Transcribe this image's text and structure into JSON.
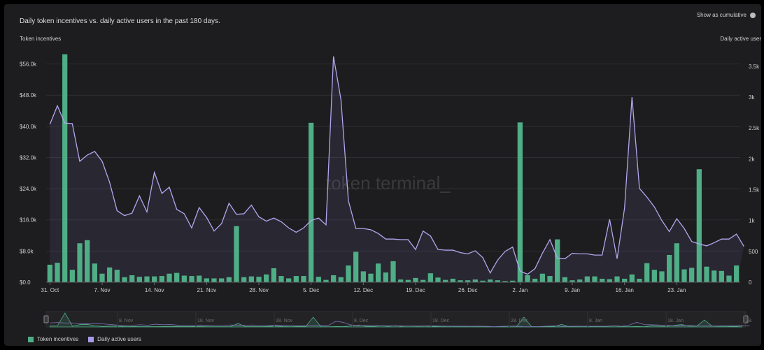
{
  "title": "Daily token incentives vs. daily active users in the past 180 days.",
  "cumulative_toggle": {
    "label": "Show as cumulative"
  },
  "watermark": "token terminal_",
  "colors": {
    "bar": "#4fae86",
    "line": "#b3a6ee",
    "bg": "#1d1d1f",
    "grid": "#2f2f33"
  },
  "legend": [
    {
      "label": "Token incentives",
      "color": "#4fae86"
    },
    {
      "label": "Daily active users",
      "color": "#a99be8"
    }
  ],
  "chart_data": {
    "type": "bar+line",
    "title": "Daily token incentives vs. daily active users in the past 180 days.",
    "y_left_label": "Token incentives",
    "y_right_label": "Daily active users",
    "y_left_ticks": [
      "$0.0",
      "$8.0k",
      "$16.0k",
      "$24.0k",
      "$32.0k",
      "$40.0k",
      "$48.0k",
      "$56.0k"
    ],
    "y_right_ticks": [
      "0",
      "500",
      "1k",
      "1.5k",
      "2k",
      "2.5k",
      "3k",
      "3.5k"
    ],
    "ylim_left": [
      0,
      57000
    ],
    "ylim_right": [
      0,
      3600
    ],
    "x_ticks": [
      "31. Oct",
      "7. Nov",
      "14. Nov",
      "21. Nov",
      "28. Nov",
      "5. Dec",
      "12. Dec",
      "19. Dec",
      "26. Dec",
      "2. Jan",
      "9. Jan",
      "16. Jan",
      "23. Jan"
    ],
    "navigator_ticks": [
      "8. Nov",
      "18. Nov",
      "28. Nov",
      "8. Dec",
      "18. Dec",
      "28. Dec",
      "8. Jan",
      "18. Jan",
      "28."
    ],
    "x_start": "2022-10-31",
    "series": [
      {
        "name": "Token incentives",
        "kind": "bar",
        "values": [
          4500,
          5000,
          58500,
          3200,
          10000,
          10800,
          4800,
          2200,
          3800,
          3200,
          1300,
          1800,
          1400,
          1500,
          1500,
          1600,
          2200,
          2400,
          1700,
          1600,
          1700,
          1000,
          1000,
          1000,
          1300,
          14400,
          1300,
          1500,
          1400,
          2000,
          3600,
          1600,
          1000,
          1600,
          1600,
          40900,
          1400,
          600,
          1800,
          1300,
          4300,
          7800,
          2800,
          2200,
          4800,
          2500,
          5400,
          700,
          600,
          1100,
          600,
          2300,
          1200,
          600,
          900,
          500,
          500,
          700,
          400,
          700,
          500,
          300,
          400,
          41000,
          1800,
          900,
          2200,
          1600,
          11000,
          1300,
          500,
          700,
          1500,
          1500,
          900,
          800,
          1500,
          900,
          2000,
          900,
          4900,
          3200,
          2800,
          7000,
          10000,
          3300,
          3700,
          29000,
          4000,
          3000,
          2900,
          1700,
          4300
        ]
      },
      {
        "name": "Daily active users",
        "kind": "line",
        "values": [
          2560,
          2860,
          2580,
          2570,
          1960,
          2060,
          2120,
          1960,
          1620,
          1160,
          1080,
          1120,
          1400,
          1140,
          1780,
          1440,
          1540,
          1180,
          1110,
          880,
          1210,
          1050,
          830,
          950,
          1280,
          1100,
          1110,
          1250,
          1060,
          990,
          1040,
          980,
          880,
          810,
          880,
          1000,
          1040,
          930,
          3660,
          2960,
          1320,
          870,
          870,
          850,
          790,
          700,
          700,
          690,
          690,
          530,
          830,
          750,
          530,
          520,
          520,
          480,
          460,
          510,
          400,
          150,
          360,
          500,
          570,
          180,
          130,
          220,
          470,
          690,
          390,
          380,
          470,
          460,
          460,
          440,
          440,
          1020,
          380,
          1200,
          3000,
          1520,
          1380,
          1220,
          1000,
          820,
          1030,
          870,
          660,
          620,
          590,
          640,
          700,
          700,
          780,
          580
        ]
      }
    ]
  }
}
